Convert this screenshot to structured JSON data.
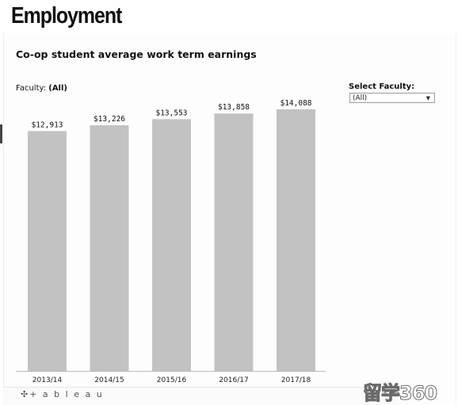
{
  "page": {
    "heading": "Employment"
  },
  "filter": {
    "faculty_label": "Faculty:",
    "faculty_value": "(All)",
    "select_label": "Select Faculty:",
    "select_value": "(All)"
  },
  "footer": {
    "logo_text": "+ a b l e a u",
    "icons": "⇄ ⇱ ✥"
  },
  "watermark": {
    "text": "留学360"
  },
  "colors": {
    "bar": "#c3c2c3",
    "axis": "#bbbbbb",
    "text": "#111111"
  },
  "chart_data": {
    "type": "bar",
    "title": "Co-op student average work term earnings",
    "xlabel": "",
    "ylabel": "",
    "categories": [
      "2013/14",
      "2014/15",
      "2015/16",
      "2016/17",
      "2017/18"
    ],
    "values": [
      12913,
      13226,
      13553,
      13858,
      14088
    ],
    "data_labels": [
      "$12,913",
      "$13,226",
      "$13,553",
      "$13,858",
      "$14,088"
    ],
    "ylim": [
      0,
      14850
    ],
    "grid": false,
    "legend": "none"
  }
}
